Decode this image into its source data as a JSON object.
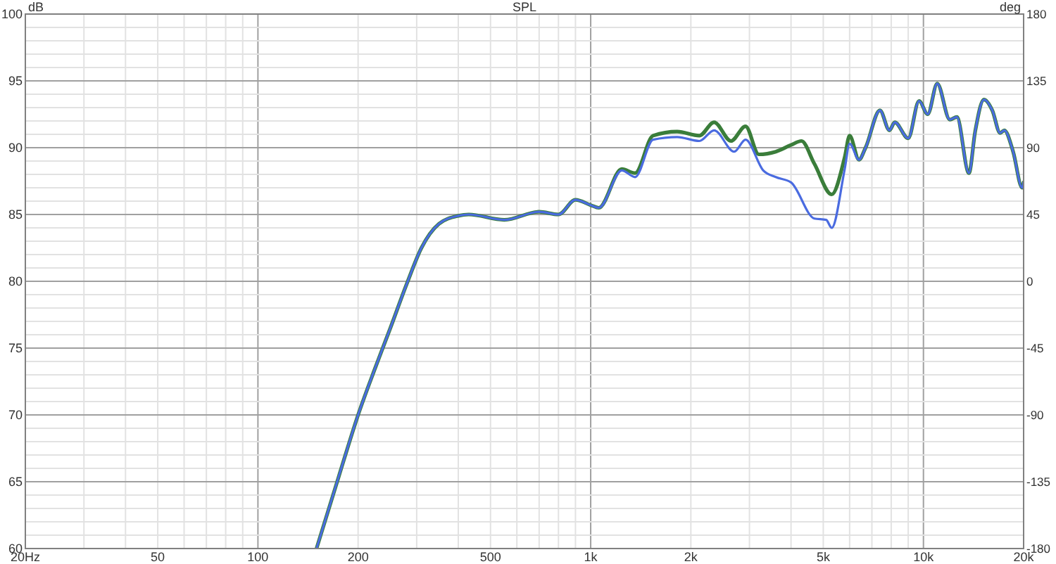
{
  "chart_data": {
    "type": "line",
    "title": "SPL",
    "ylabel": "dB",
    "y2label": "deg",
    "log": "x",
    "xlim": [
      20,
      20000
    ],
    "xticks": [
      {
        "value": 20,
        "label": "20Hz"
      },
      50,
      100,
      200,
      500,
      {
        "value": 1000,
        "label": "1k"
      },
      {
        "value": 2000,
        "label": "2k"
      },
      {
        "value": 5000,
        "label": "5k"
      },
      {
        "value": 10000,
        "label": "10k"
      },
      {
        "value": 20000,
        "label": "20k"
      }
    ],
    "ylim": [
      60,
      100
    ],
    "yticks": [
      60,
      65,
      70,
      75,
      80,
      85,
      90,
      95,
      100
    ],
    "y2lim": [
      -180,
      180
    ],
    "y2ticks": [
      -180,
      -135,
      -90,
      -45,
      0,
      45,
      90,
      135,
      180
    ],
    "grid": true,
    "line_style": "solid",
    "marker": "none",
    "series": [
      {
        "color": "#3a7d3a",
        "x": [
          150,
          175,
          200,
          225,
          250,
          280,
          310,
          350,
          400,
          430,
          550,
          700,
          800,
          900,
          1000,
          1058,
          1240,
          1360,
          1540,
          1820,
          2120,
          2350,
          2640,
          2920,
          3200,
          3600,
          4000,
          4300,
          4700,
          5300,
          5800,
          6000,
          6400,
          6700,
          7400,
          7900,
          8200,
          9000,
          9700,
          10300,
          11000,
          12000,
          12600,
          13700,
          14300,
          15200,
          16100,
          17000,
          17500,
          18600,
          19800,
          20000
        ],
        "values": [
          60,
          65.4,
          70,
          73.5,
          76.5,
          79.8,
          82.5,
          84.3,
          84.9,
          85,
          84.6,
          85.2,
          85,
          86.1,
          85.7,
          85.5,
          88.4,
          88.1,
          90.9,
          91.2,
          90.9,
          91.9,
          90.5,
          91.6,
          89.5,
          89.7,
          90.2,
          90.5,
          88.8,
          86.5,
          89.3,
          90.9,
          89.1,
          90,
          92.8,
          91.3,
          91.9,
          90.7,
          93.5,
          92.5,
          94.8,
          92.1,
          92.3,
          88.1,
          91.2,
          93.6,
          92.8,
          91.1,
          91.3,
          89.7,
          87,
          87.4
        ]
      },
      {
        "color": "#4a6be0",
        "x": [
          150,
          175,
          200,
          225,
          250,
          280,
          310,
          350,
          400,
          430,
          550,
          700,
          800,
          900,
          1000,
          1058,
          1240,
          1360,
          1540,
          1820,
          2120,
          2350,
          2700,
          2920,
          3300,
          3600,
          4000,
          4700,
          5100,
          5300,
          5800,
          6000,
          6400,
          6700,
          7400,
          7900,
          8200,
          9000,
          9700,
          10300,
          11000,
          12000,
          12600,
          13700,
          14300,
          15200,
          16100,
          17000,
          17500,
          18600,
          19800,
          20000
        ],
        "values": [
          60,
          65.4,
          70,
          73.5,
          76.5,
          79.8,
          82.5,
          84.3,
          84.9,
          85,
          84.6,
          85.2,
          85,
          86.1,
          85.7,
          85.5,
          88.3,
          87.8,
          90.6,
          90.8,
          90.5,
          91.3,
          89.7,
          90.6,
          88.3,
          87.8,
          87.4,
          84.7,
          84.6,
          84,
          88.4,
          90.3,
          89.1,
          90,
          92.8,
          91.3,
          91.9,
          90.7,
          93.5,
          92.5,
          94.8,
          92.1,
          92.3,
          88.1,
          91.2,
          93.6,
          92.8,
          91.1,
          91.3,
          89.7,
          87,
          87.4
        ]
      }
    ]
  }
}
